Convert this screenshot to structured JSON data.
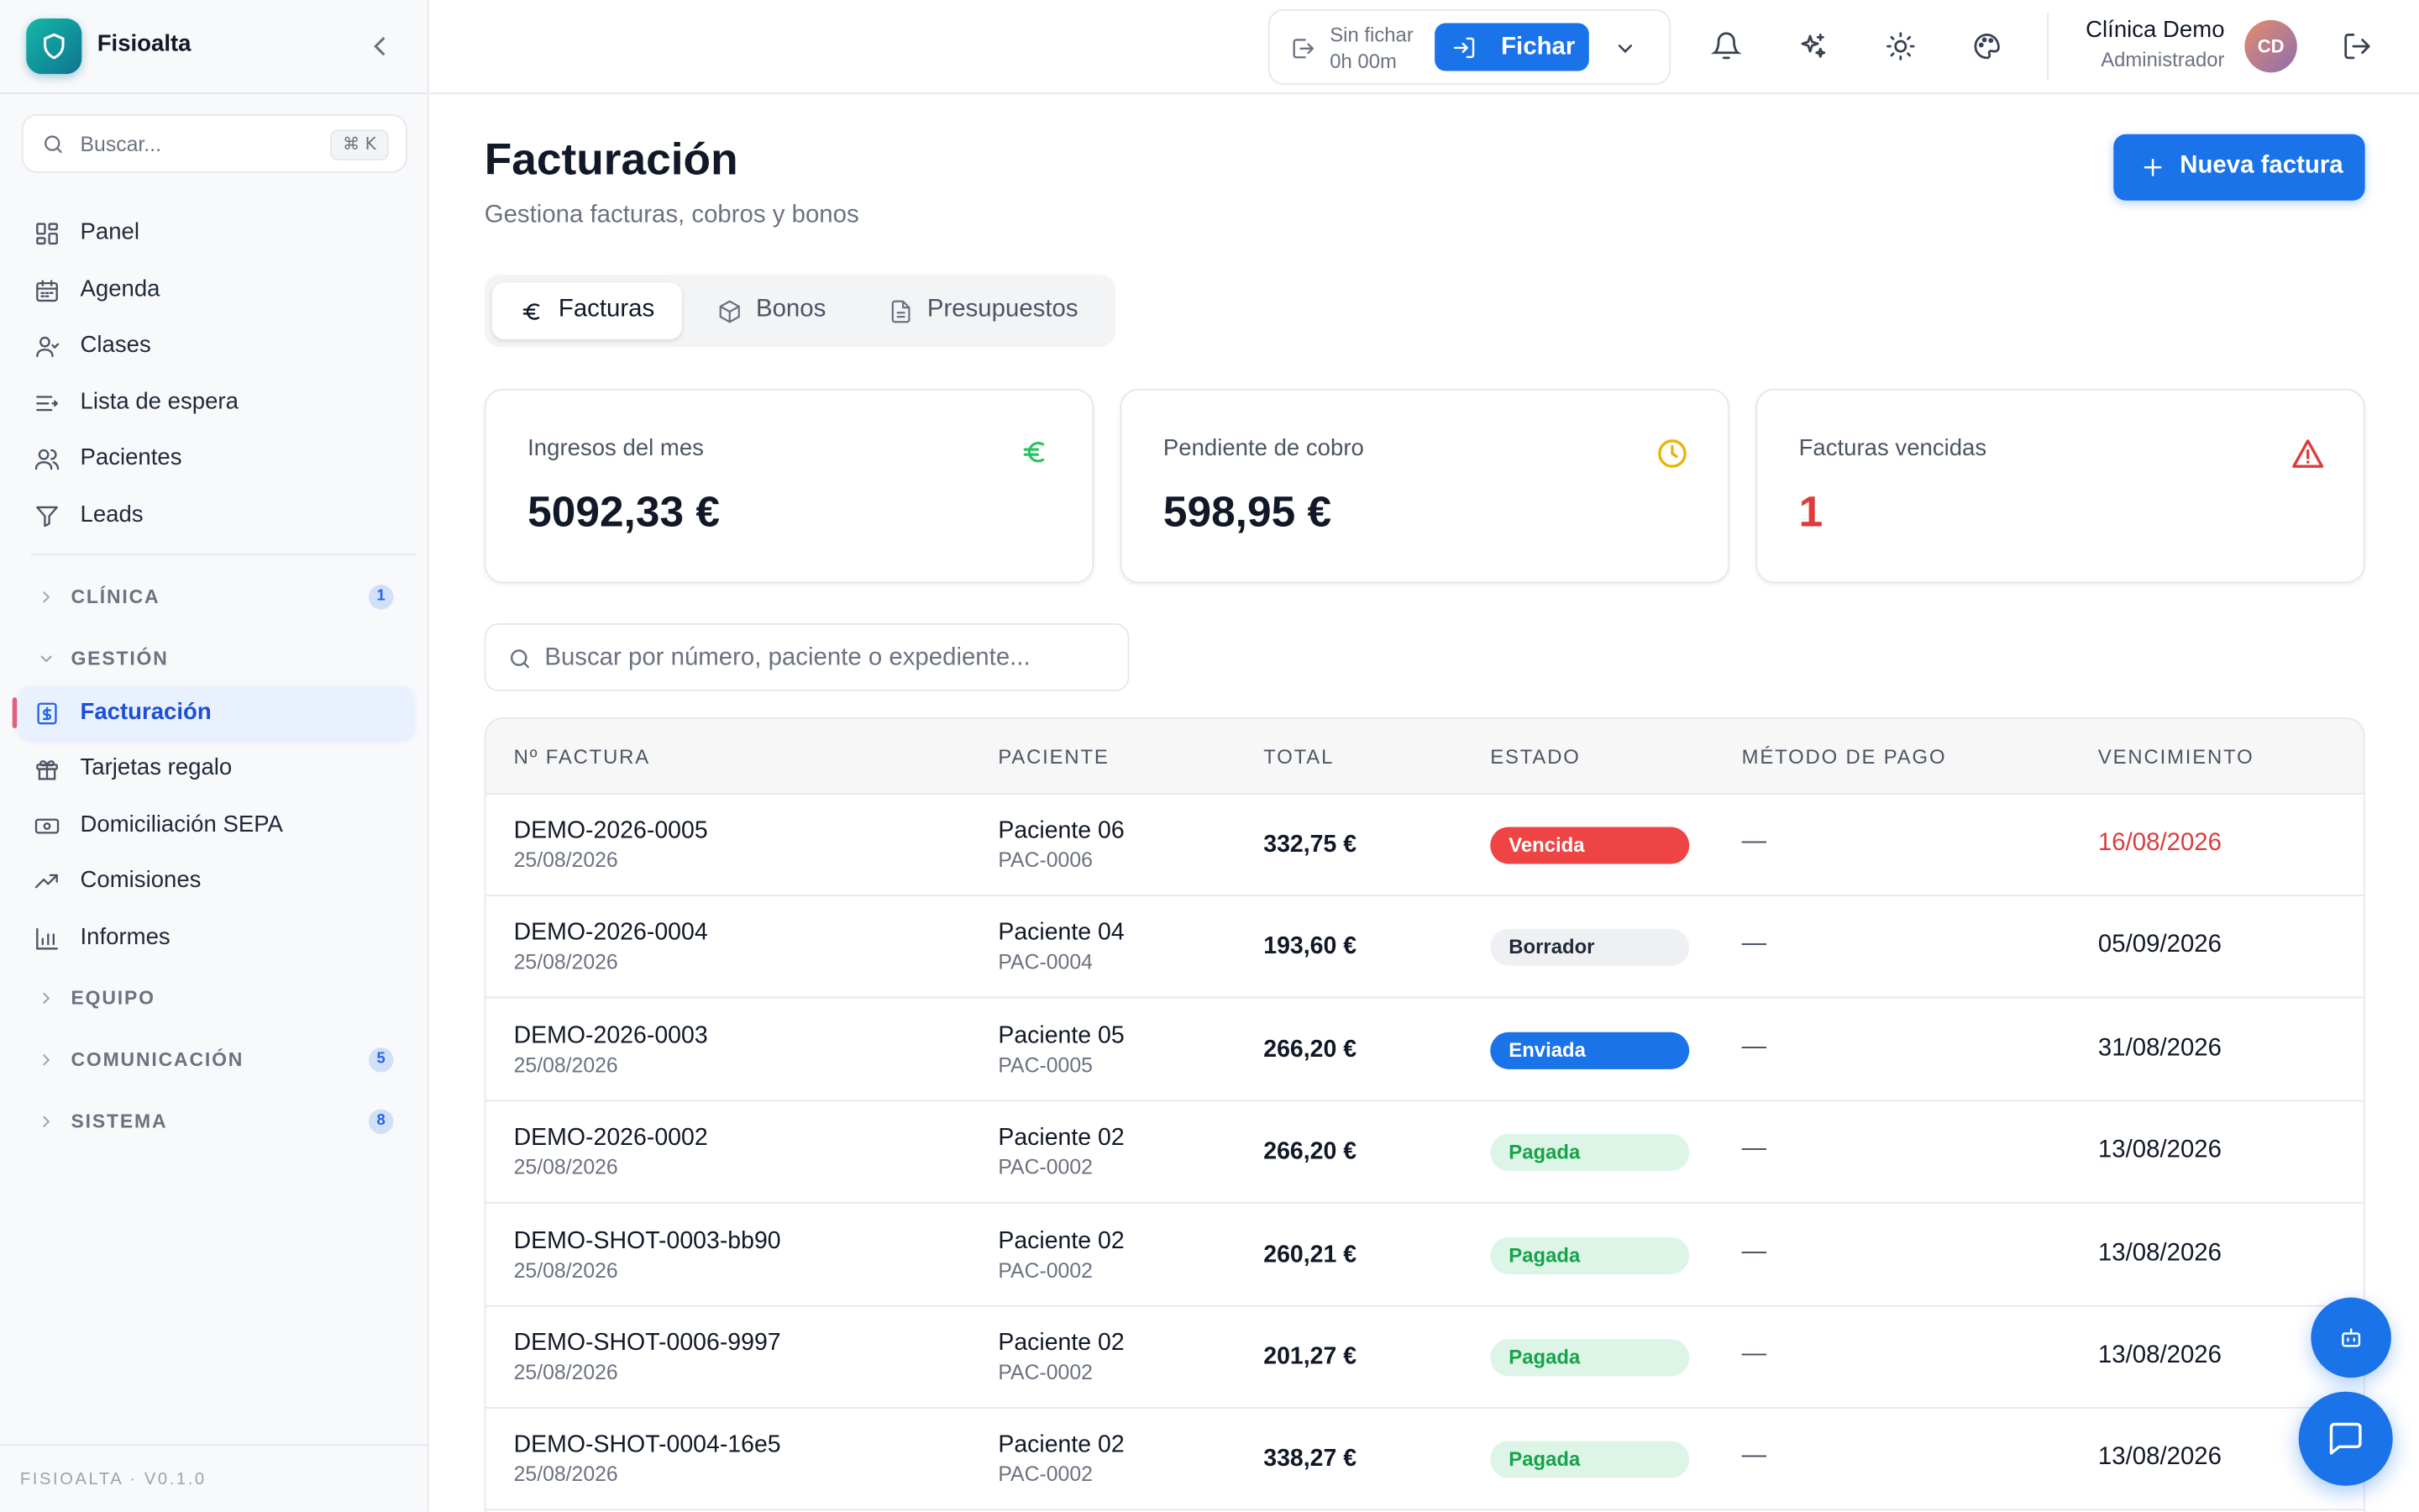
{
  "app": {
    "name": "Fisioalta",
    "version": "FISIOALTA · V0.1.0"
  },
  "sidebar": {
    "search": {
      "placeholder": "Buscar...",
      "shortcut": "⌘ K"
    },
    "items": [
      {
        "label": "Panel",
        "icon": "grid-icon"
      },
      {
        "label": "Agenda",
        "icon": "calendar-icon"
      },
      {
        "label": "Clases",
        "icon": "users-icon"
      },
      {
        "label": "Lista de espera",
        "icon": "list-icon"
      },
      {
        "label": "Pacientes",
        "icon": "patients-icon"
      },
      {
        "label": "Leads",
        "icon": "filter-icon"
      }
    ],
    "sections": {
      "clinica": {
        "label": "CLÍNICA",
        "badge": "1"
      },
      "gestion": {
        "label": "GESTIÓN"
      },
      "equipo": {
        "label": "EQUIPO"
      },
      "comunicacion": {
        "label": "COMUNICACIÓN",
        "badge": "5"
      },
      "sistema": {
        "label": "SISTEMA",
        "badge": "8"
      }
    },
    "gestion_items": [
      {
        "label": "Facturación",
        "icon": "invoice-icon",
        "active": true
      },
      {
        "label": "Tarjetas regalo",
        "icon": "gift-icon"
      },
      {
        "label": "Domiciliación SEPA",
        "icon": "banknote-icon"
      },
      {
        "label": "Comisiones",
        "icon": "trending-up-icon"
      },
      {
        "label": "Informes",
        "icon": "bar-chart-icon"
      }
    ]
  },
  "header": {
    "clock": {
      "status": "Sin fichar",
      "time": "0h 00m",
      "button": "Fichar"
    },
    "user": {
      "name": "Clínica Demo",
      "role": "Administrador",
      "initials": "CD"
    }
  },
  "page": {
    "title": "Facturación",
    "subtitle": "Gestiona facturas, cobros y bonos",
    "new_button": "Nueva factura",
    "tabs": [
      {
        "label": "Facturas",
        "icon": "euro-icon",
        "active": true
      },
      {
        "label": "Bonos",
        "icon": "package-icon"
      },
      {
        "label": "Presupuestos",
        "icon": "file-icon"
      }
    ],
    "cards": [
      {
        "label": "Ingresos del mes",
        "value": "5092,33 €",
        "icon": "euro-icon",
        "color": "#22c55e"
      },
      {
        "label": "Pendiente de cobro",
        "value": "598,95 €",
        "icon": "clock-icon",
        "color": "#eab308"
      },
      {
        "label": "Facturas vencidas",
        "value": "1",
        "icon": "alert-triangle-icon",
        "color": "#dc3c3c"
      }
    ],
    "table_search_placeholder": "Buscar por número, paciente o expediente..."
  },
  "table": {
    "headers": [
      "Nº FACTURA",
      "PACIENTE",
      "TOTAL",
      "ESTADO",
      "MÉTODO DE PAGO",
      "VENCIMIENTO"
    ],
    "rows": [
      {
        "number": "DEMO-2026-0005",
        "date": "25/08/2026",
        "patient": "Paciente 06",
        "code": "PAC-0006",
        "total": "332,75 €",
        "status": "Vencida",
        "status_type": "vencida",
        "method": "—",
        "due": "16/08/2026",
        "due_overdue": true
      },
      {
        "number": "DEMO-2026-0004",
        "date": "25/08/2026",
        "patient": "Paciente 04",
        "code": "PAC-0004",
        "total": "193,60 €",
        "status": "Borrador",
        "status_type": "borrador",
        "method": "—",
        "due": "05/09/2026"
      },
      {
        "number": "DEMO-2026-0003",
        "date": "25/08/2026",
        "patient": "Paciente 05",
        "code": "PAC-0005",
        "total": "266,20 €",
        "status": "Enviada",
        "status_type": "enviada",
        "method": "—",
        "due": "31/08/2026"
      },
      {
        "number": "DEMO-2026-0002",
        "date": "25/08/2026",
        "patient": "Paciente 02",
        "code": "PAC-0002",
        "total": "266,20 €",
        "status": "Pagada",
        "status_type": "pagada",
        "method": "—",
        "due": "13/08/2026"
      },
      {
        "number": "DEMO-SHOT-0003-bb90",
        "date": "25/08/2026",
        "patient": "Paciente 02",
        "code": "PAC-0002",
        "total": "260,21 €",
        "status": "Pagada",
        "status_type": "pagada",
        "method": "—",
        "due": "13/08/2026"
      },
      {
        "number": "DEMO-SHOT-0006-9997",
        "date": "25/08/2026",
        "patient": "Paciente 02",
        "code": "PAC-0002",
        "total": "201,27 €",
        "status": "Pagada",
        "status_type": "pagada",
        "method": "—",
        "due": "13/08/2026"
      },
      {
        "number": "DEMO-SHOT-0004-16e5",
        "date": "25/08/2026",
        "patient": "Paciente 02",
        "code": "PAC-0002",
        "total": "338,27 €",
        "status": "Pagada",
        "status_type": "pagada",
        "method": "—",
        "due": "13/08/2026"
      }
    ]
  }
}
